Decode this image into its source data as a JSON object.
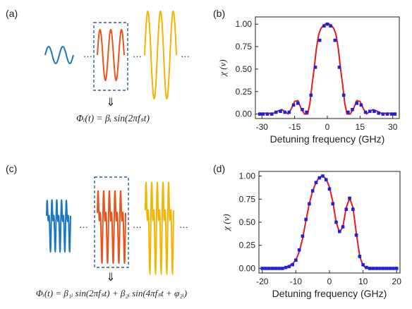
{
  "panel_labels": [
    "(a)",
    "(b)",
    "(c)",
    "(d)"
  ],
  "dots": "···",
  "arrow": "⇓",
  "formula_a": "Φᵢ(t) = βᵢ sin(2πfₛt)",
  "formula_c": "Φᵢ(t) = β₁ᵢ sin(2πfₛt) + β₂ᵢ sin(4πfₛt + φ₂ᵢ)",
  "colors": {
    "blue": "#1a78c2",
    "orange": "#e8541c",
    "gold": "#f5b400",
    "fit": "#e41a1c",
    "marker": "#1f1fe0",
    "dash": "#2c5d8a"
  },
  "chart_data": [
    {
      "type": "line",
      "panel": "(b)",
      "title": "",
      "xlabel": "Detuning frequency (GHz)",
      "ylabel": "χ (ν)",
      "xlim": [
        -33,
        33
      ],
      "ylim": [
        -0.05,
        1.08
      ],
      "xticks": [
        -30,
        -15,
        0,
        15,
        30
      ],
      "yticks": [
        0.0,
        0.25,
        0.5,
        0.75,
        1.0
      ],
      "ytick_labels": [
        "0.00",
        "0.25",
        "0.50",
        "0.75",
        "1.00"
      ],
      "grid": false,
      "legend": "none",
      "series": [
        {
          "style": "line",
          "x": [
            -31,
            -28,
            -25,
            -23,
            -21,
            -19.5,
            -18,
            -16.5,
            -15,
            -13.5,
            -12,
            -10.5,
            -9,
            -8,
            -7,
            -6,
            -5,
            -4,
            -3,
            -2,
            -1,
            0,
            1,
            2,
            3,
            4,
            5,
            6,
            7,
            8,
            9,
            10.5,
            12,
            13.5,
            15,
            16.5,
            18,
            19.5,
            21,
            23,
            25,
            28,
            31
          ],
          "y": [
            0.0,
            0.01,
            0.005,
            0.03,
            0.05,
            0.03,
            0.0,
            0.06,
            0.14,
            0.15,
            0.06,
            0.0,
            0.0,
            0.12,
            0.33,
            0.52,
            0.73,
            0.88,
            0.95,
            0.98,
            1.0,
            1.0,
            1.0,
            0.98,
            0.95,
            0.88,
            0.73,
            0.52,
            0.33,
            0.12,
            0.0,
            0.0,
            0.06,
            0.15,
            0.14,
            0.06,
            0.0,
            0.03,
            0.05,
            0.03,
            0.005,
            0.01,
            0.0
          ]
        },
        {
          "style": "markers",
          "x": [
            -31,
            -29.5,
            -27.5,
            -25.5,
            -23.5,
            -21.5,
            -19.5,
            -17.5,
            -15.5,
            -13.5,
            -11.5,
            -9.5,
            -7.5,
            -5.5,
            -3.5,
            -1.5,
            0,
            1.5,
            3.5,
            5.5,
            7.5,
            9.5,
            11.5,
            13.5,
            15.5,
            17.5,
            19.5,
            21.5,
            23.5,
            25.5,
            27.5,
            29.5,
            31
          ],
          "y": [
            0.0,
            0.0,
            0.0,
            0.0,
            0.02,
            0.03,
            0.02,
            0.02,
            0.1,
            0.12,
            0.05,
            0.02,
            0.21,
            0.52,
            0.82,
            0.98,
            1.0,
            0.98,
            0.82,
            0.52,
            0.21,
            0.02,
            0.05,
            0.12,
            0.1,
            0.02,
            0.03,
            0.03,
            0.01,
            0.0,
            0.0,
            0.0,
            0.0
          ]
        }
      ]
    },
    {
      "type": "line",
      "panel": "(d)",
      "title": "",
      "xlabel": "Detuning frequency (GHz)",
      "ylabel": "χ (ν)",
      "xlim": [
        -21,
        21
      ],
      "ylim": [
        -0.05,
        1.05
      ],
      "xticks": [
        -20,
        -10,
        0,
        10,
        20
      ],
      "yticks": [
        0.0,
        0.25,
        0.5,
        0.75,
        1.0
      ],
      "ytick_labels": [
        "0.00",
        "0.25",
        "0.50",
        "0.75",
        "1.00"
      ],
      "grid": false,
      "legend": "none",
      "series": [
        {
          "style": "line",
          "x": [
            -20,
            -15,
            -13,
            -11,
            -10,
            -9,
            -8,
            -7,
            -6,
            -5,
            -4,
            -3,
            -2,
            -1,
            0,
            1,
            2,
            3,
            4,
            5,
            6,
            7,
            8,
            9,
            10,
            11,
            13,
            20
          ],
          "y": [
            0.0,
            0.0,
            0.01,
            0.05,
            0.09,
            0.18,
            0.32,
            0.52,
            0.7,
            0.84,
            0.93,
            0.99,
            1.0,
            0.97,
            0.88,
            0.72,
            0.5,
            0.39,
            0.45,
            0.66,
            0.76,
            0.66,
            0.38,
            0.13,
            0.03,
            0.0,
            0.0,
            0.0
          ]
        },
        {
          "style": "markers",
          "x": [
            -20,
            -19,
            -18,
            -17,
            -16,
            -15,
            -14,
            -13,
            -12,
            -11,
            -10,
            -9,
            -8,
            -7,
            -6,
            -5,
            -4,
            -3,
            -2,
            -1,
            0,
            1,
            2,
            3,
            4,
            5,
            6,
            7,
            8,
            9,
            10,
            11,
            12,
            13,
            14,
            15,
            16,
            17,
            18,
            19,
            20
          ],
          "y": [
            0.0,
            0.0,
            0.0,
            0.0,
            0.0,
            0.0,
            0.0,
            0.01,
            0.02,
            0.04,
            0.09,
            0.2,
            0.35,
            0.53,
            0.7,
            0.84,
            0.93,
            0.98,
            1.0,
            0.96,
            0.86,
            0.7,
            0.5,
            0.4,
            0.45,
            0.64,
            0.76,
            0.64,
            0.36,
            0.13,
            0.04,
            0.01,
            0.0,
            0.0,
            0.0,
            0.0,
            0.0,
            0.0,
            0.0,
            0.0,
            0.0
          ]
        }
      ]
    }
  ]
}
